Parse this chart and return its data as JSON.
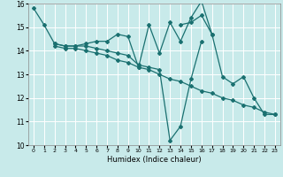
{
  "title": "",
  "xlabel": "Humidex (Indice chaleur)",
  "xlim": [
    -0.5,
    23.5
  ],
  "ylim": [
    10,
    16
  ],
  "yticks": [
    10,
    11,
    12,
    13,
    14,
    15,
    16
  ],
  "xticks": [
    0,
    1,
    2,
    3,
    4,
    5,
    6,
    7,
    8,
    9,
    10,
    11,
    12,
    13,
    14,
    15,
    16,
    17,
    18,
    19,
    20,
    21,
    22,
    23
  ],
  "background_color": "#c8eaea",
  "grid_color": "#ffffff",
  "line_color": "#1a7070",
  "series": [
    {
      "x": [
        0,
        1,
        2,
        3,
        4,
        5,
        6,
        7,
        8,
        9,
        10,
        11,
        12,
        13,
        14,
        15,
        16,
        17
      ],
      "y": [
        15.8,
        15.1,
        14.3,
        14.2,
        14.2,
        14.3,
        14.4,
        14.4,
        14.7,
        14.6,
        13.3,
        15.1,
        13.9,
        15.2,
        14.4,
        15.4,
        16.1,
        14.7
      ]
    },
    {
      "x": [
        2,
        3,
        4,
        5,
        6,
        7,
        8,
        9,
        10,
        11,
        12,
        13,
        14,
        15,
        16,
        17,
        18,
        19,
        20,
        21,
        22,
        23
      ],
      "y": [
        14.2,
        14.1,
        14.1,
        14.0,
        13.9,
        13.8,
        13.6,
        13.5,
        13.3,
        13.2,
        13.0,
        12.8,
        12.7,
        12.5,
        12.3,
        12.2,
        12.0,
        11.9,
        11.7,
        11.6,
        11.4,
        11.3
      ]
    },
    {
      "x": [
        2,
        3,
        4,
        5,
        6,
        7,
        8,
        9,
        10,
        11,
        12,
        13,
        14,
        15,
        16
      ],
      "y": [
        14.3,
        14.2,
        14.2,
        14.2,
        14.1,
        14.0,
        13.9,
        13.8,
        13.4,
        13.3,
        13.2,
        10.2,
        10.8,
        12.8,
        14.4
      ]
    },
    {
      "x": [
        14,
        15,
        16,
        17,
        18,
        19,
        20,
        21,
        22,
        23
      ],
      "y": [
        15.1,
        15.2,
        15.5,
        14.7,
        12.9,
        12.6,
        12.9,
        12.0,
        11.3,
        11.3
      ]
    }
  ]
}
